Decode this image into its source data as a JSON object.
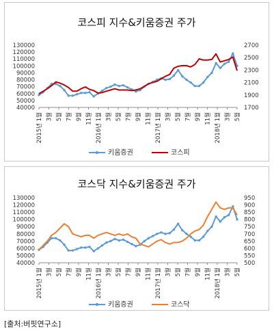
{
  "source_note": "[출처:버핏연구소]",
  "colors": {
    "kiwoom": "#5b9bd5",
    "kospi": "#c00000",
    "kosdaq": "#ed7d31",
    "axis": "#8c8c8c",
    "text": "#333333"
  },
  "chart_data": [
    {
      "type": "line",
      "title": "코스피 지수&키움증권 주가",
      "x_tick_labels": [
        "2015년 1월",
        "3월",
        "5월",
        "7월",
        "9월",
        "11월",
        "2016년 1월",
        "3월",
        "5월",
        "7월",
        "9월",
        "11월",
        "2017년 1월",
        "3월",
        "5월",
        "7월",
        "9월",
        "11월",
        "2018년 1월",
        "3월",
        "5월"
      ],
      "y_left": {
        "ticks": [
          "40000",
          "50000",
          "60000",
          "70000",
          "80000",
          "90000",
          "100000",
          "110000",
          "120000",
          "130000"
        ],
        "ylim": [
          40000,
          130000
        ]
      },
      "y_right": {
        "ticks": [
          "1700",
          "1900",
          "2100",
          "2300",
          "2500",
          "2700"
        ],
        "ylim": [
          1700,
          2700
        ]
      },
      "legend_position": "bottom",
      "series": [
        {
          "name": "키움증권",
          "axis": "left",
          "color": "#5b9bd5",
          "marker": true,
          "values": [
            58000,
            62000,
            68000,
            74000,
            74000,
            71000,
            65000,
            57000,
            57000,
            59000,
            61000,
            61000,
            62000,
            56000,
            60000,
            64000,
            68000,
            70000,
            73000,
            71000,
            72000,
            69000,
            66000,
            63000,
            65000,
            70000,
            74000,
            77000,
            80000,
            82000,
            80000,
            81000,
            86000,
            94000,
            85000,
            80000,
            76000,
            71000,
            71000,
            76000,
            84000,
            90000,
            104000,
            97000,
            103000,
            106000,
            118000,
            100000
          ]
        },
        {
          "name": "코스피",
          "axis": "right",
          "color": "#c00000",
          "marker": false,
          "values": [
            1920,
            1960,
            2000,
            2050,
            2110,
            2090,
            2060,
            2020,
            1960,
            1960,
            2000,
            2030,
            1990,
            1970,
            1930,
            1940,
            1960,
            1980,
            2000,
            1980,
            1980,
            1980,
            1970,
            1980,
            2000,
            2040,
            2080,
            2100,
            2120,
            2160,
            2200,
            2230,
            2330,
            2360,
            2370,
            2370,
            2350,
            2390,
            2480,
            2460,
            2460,
            2470,
            2560,
            2430,
            2450,
            2470,
            2510,
            2290
          ]
        }
      ]
    },
    {
      "type": "line",
      "title": "코스닥 지수&키움증권 주가",
      "x_tick_labels": [
        "2015년 1월",
        "3월",
        "5월",
        "7월",
        "9월",
        "11월",
        "2016년 1월",
        "3월",
        "5월",
        "7월",
        "9월",
        "11월",
        "2017년 1월",
        "3월",
        "5월",
        "7월",
        "9월",
        "11월",
        "2018년 1월",
        "3월",
        "5월"
      ],
      "y_left": {
        "ticks": [
          "40000",
          "50000",
          "60000",
          "70000",
          "80000",
          "90000",
          "100000",
          "110000",
          "120000",
          "130000"
        ],
        "ylim": [
          40000,
          130000
        ]
      },
      "y_right": {
        "ticks": [
          "500",
          "550",
          "600",
          "650",
          "700",
          "750",
          "800",
          "850",
          "900",
          "950"
        ],
        "ylim": [
          500,
          950
        ]
      },
      "legend_position": "bottom",
      "series": [
        {
          "name": "키움증권",
          "axis": "left",
          "color": "#5b9bd5",
          "marker": true,
          "values": [
            58000,
            62000,
            68000,
            74000,
            74000,
            71000,
            65000,
            57000,
            57000,
            59000,
            61000,
            61000,
            62000,
            56000,
            60000,
            64000,
            68000,
            70000,
            73000,
            71000,
            72000,
            69000,
            66000,
            63000,
            65000,
            70000,
            74000,
            77000,
            80000,
            82000,
            80000,
            81000,
            86000,
            94000,
            85000,
            80000,
            76000,
            71000,
            71000,
            76000,
            84000,
            90000,
            104000,
            97000,
            103000,
            106000,
            118000,
            100000
          ]
        },
        {
          "name": "코스닥",
          "axis": "right",
          "color": "#ed7d31",
          "marker": false,
          "values": [
            590,
            620,
            650,
            690,
            710,
            740,
            770,
            750,
            700,
            690,
            680,
            690,
            690,
            670,
            690,
            700,
            710,
            700,
            690,
            700,
            690,
            700,
            680,
            670,
            630,
            620,
            610,
            630,
            650,
            660,
            640,
            630,
            640,
            640,
            650,
            670,
            700,
            720,
            730,
            760,
            820,
            870,
            920,
            880,
            870,
            880,
            880,
            830
          ]
        }
      ]
    }
  ]
}
